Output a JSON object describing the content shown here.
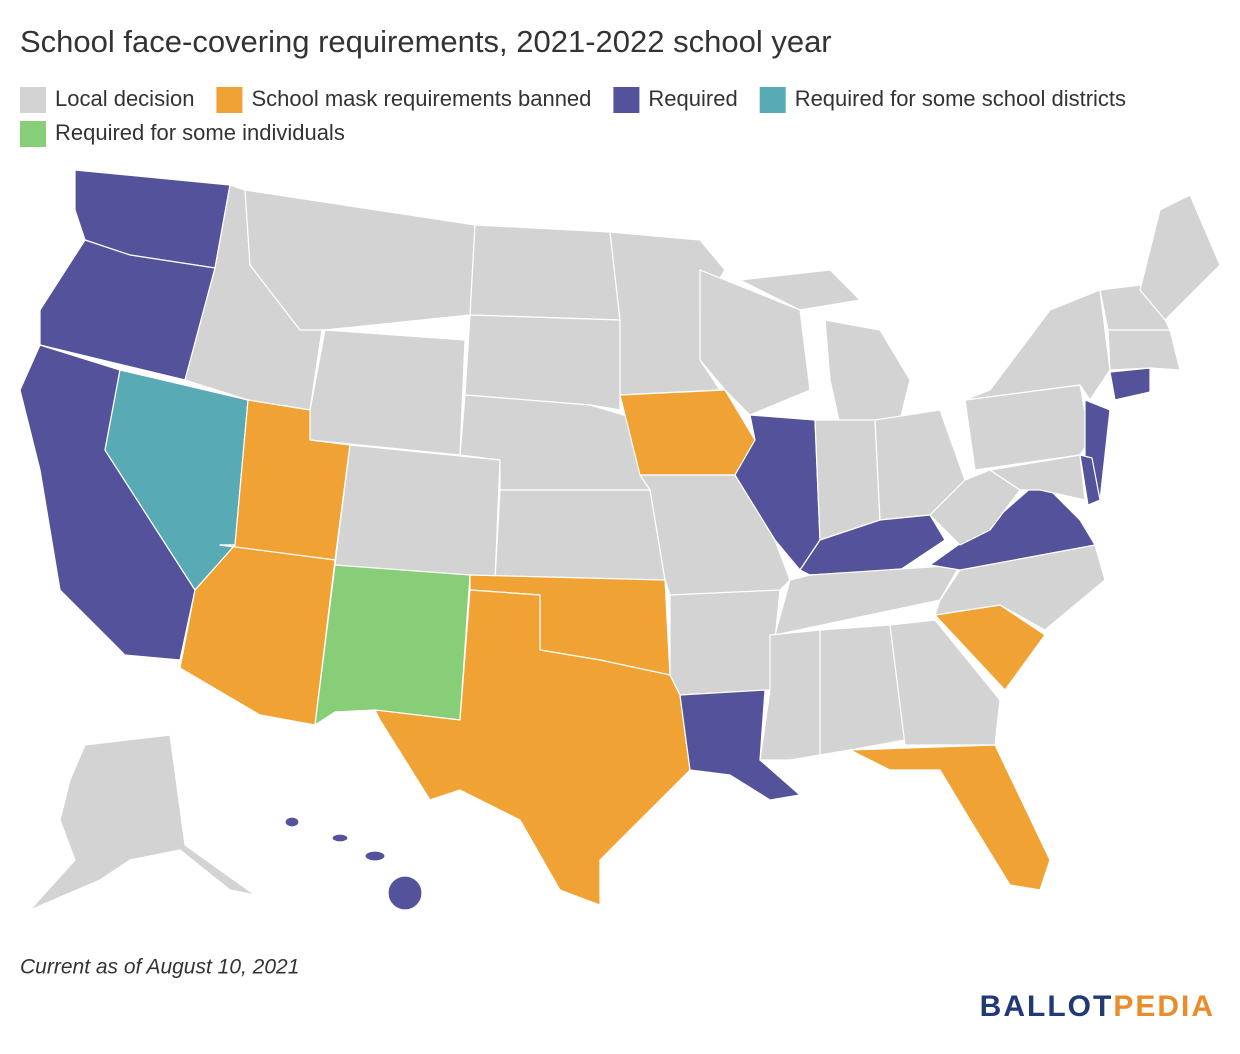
{
  "title": "School face-covering requirements, 2021-2022 school year",
  "legend": [
    {
      "label": "Local decision",
      "color": "#d3d3d3"
    },
    {
      "label": "School mask requirements banned",
      "color": "#f0a235"
    },
    {
      "label": "Required",
      "color": "#53529b"
    },
    {
      "label": "Required for some school districts",
      "color": "#58abb4"
    },
    {
      "label": "Required for some individuals",
      "color": "#88cd78"
    }
  ],
  "note": "Current as of August 10, 2021",
  "logo": [
    "BALLOT",
    "PEDIA"
  ]
}
